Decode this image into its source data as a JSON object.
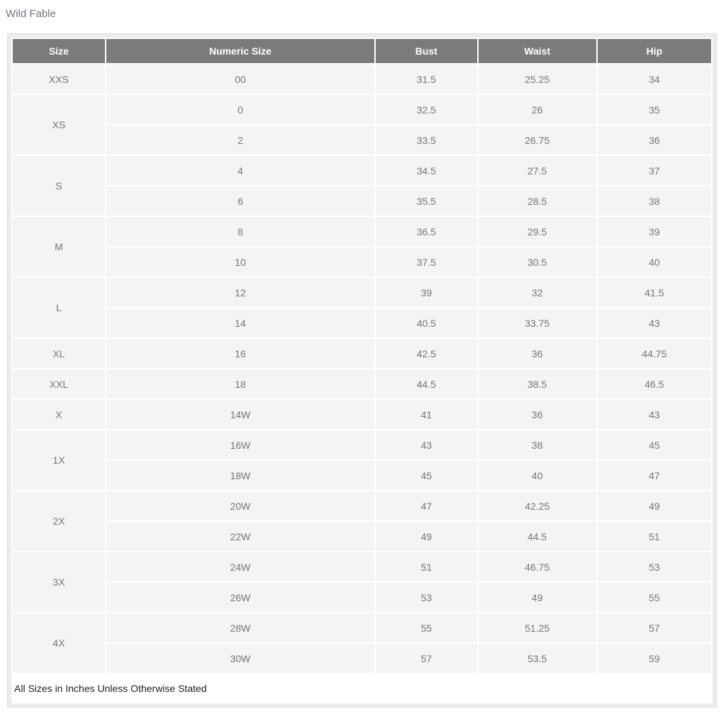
{
  "page": {
    "title": "Wild Fable",
    "footnote": "All Sizes in Inches Unless Otherwise Stated"
  },
  "colors": {
    "header_bg": "#7b7b7b",
    "header_text": "#ffffff",
    "cell_bg": "#f4f4f4",
    "cell_text": "#757575",
    "frame_bg": "#ececec",
    "page_bg": "#ffffff",
    "footnote_text": "#1e1e1e",
    "title_text": "#72727c"
  },
  "table": {
    "columns": [
      "Size",
      "Numeric Size",
      "Bust",
      "Waist",
      "Hip"
    ],
    "units": "inches",
    "groups": [
      {
        "size": "XXS",
        "rows": [
          [
            "00",
            "31.5",
            "25.25",
            "34"
          ]
        ]
      },
      {
        "size": "XS",
        "rows": [
          [
            "0",
            "32.5",
            "26",
            "35"
          ],
          [
            "2",
            "33.5",
            "26.75",
            "36"
          ]
        ]
      },
      {
        "size": "S",
        "rows": [
          [
            "4",
            "34.5",
            "27.5",
            "37"
          ],
          [
            "6",
            "35.5",
            "28.5",
            "38"
          ]
        ]
      },
      {
        "size": "M",
        "rows": [
          [
            "8",
            "36.5",
            "29.5",
            "39"
          ],
          [
            "10",
            "37.5",
            "30.5",
            "40"
          ]
        ]
      },
      {
        "size": "L",
        "rows": [
          [
            "12",
            "39",
            "32",
            "41.5"
          ],
          [
            "14",
            "40.5",
            "33.75",
            "43"
          ]
        ]
      },
      {
        "size": "XL",
        "rows": [
          [
            "16",
            "42.5",
            "36",
            "44.75"
          ]
        ]
      },
      {
        "size": "XXL",
        "rows": [
          [
            "18",
            "44.5",
            "38.5",
            "46.5"
          ]
        ]
      },
      {
        "size": "X",
        "rows": [
          [
            "14W",
            "41",
            "36",
            "43"
          ]
        ]
      },
      {
        "size": "1X",
        "rows": [
          [
            "16W",
            "43",
            "38",
            "45"
          ],
          [
            "18W",
            "45",
            "40",
            "47"
          ]
        ]
      },
      {
        "size": "2X",
        "rows": [
          [
            "20W",
            "47",
            "42.25",
            "49"
          ],
          [
            "22W",
            "49",
            "44.5",
            "51"
          ]
        ]
      },
      {
        "size": "3X",
        "rows": [
          [
            "24W",
            "51",
            "46.75",
            "53"
          ],
          [
            "26W",
            "53",
            "49",
            "55"
          ]
        ]
      },
      {
        "size": "4X",
        "rows": [
          [
            "28W",
            "55",
            "51.25",
            "57"
          ],
          [
            "30W",
            "57",
            "53.5",
            "59"
          ]
        ]
      }
    ]
  }
}
